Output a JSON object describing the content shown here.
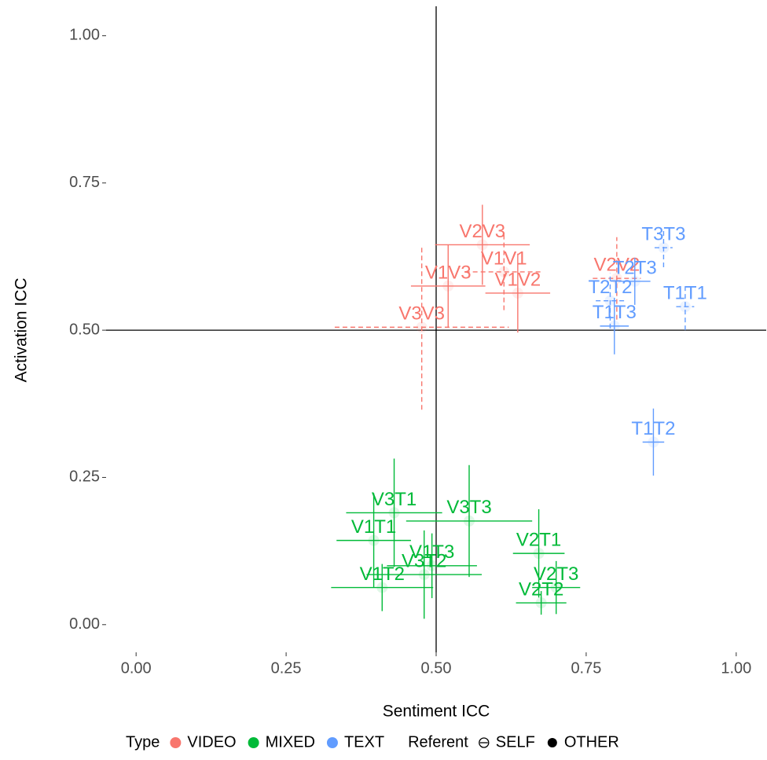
{
  "chart_data": {
    "type": "scatter",
    "x_label": "Sentiment ICC",
    "y_label": "Activation ICC",
    "xlim": [
      -0.05,
      1.05
    ],
    "ylim": [
      -0.047,
      1.05
    ],
    "xticks": [
      {
        "value": 0,
        "label": "0.00"
      },
      {
        "value": 0.25,
        "label": "0.25"
      },
      {
        "value": 0.5,
        "label": "0.50"
      },
      {
        "value": 0.75,
        "label": "0.75"
      },
      {
        "value": 1,
        "label": "1.00"
      }
    ],
    "yticks": [
      {
        "value": 0,
        "label": "0.00"
      },
      {
        "value": 0.25,
        "label": "0.25"
      },
      {
        "value": 0.5,
        "label": "0.50"
      },
      {
        "value": 0.75,
        "label": "0.75"
      },
      {
        "value": 1,
        "label": "1.00"
      }
    ],
    "hline": 0.5,
    "vline": 0.5,
    "legend_title": "Type",
    "referent_title": "Referent",
    "referents": [
      "SELF",
      "OTHER"
    ],
    "series": [
      {
        "name": "VIDEO",
        "color": "#F8766D",
        "labels": [
          "V2V3",
          "V1V1",
          "V1V3",
          "V1V2",
          "V2V2",
          "V3V3"
        ],
        "x": [
          0.577,
          0.613,
          0.52,
          0.636,
          0.801,
          0.476
        ],
        "values": [
          0.645,
          0.599,
          0.575,
          0.563,
          0.588,
          0.505
        ],
        "xerr": [
          0.079,
          0.065,
          0.062,
          0.054,
          0.04,
          0.145
        ],
        "yerr": [
          0.068,
          0.065,
          0.07,
          0.067,
          0.07,
          0.14
        ],
        "referent": [
          "OTHER",
          "SELF",
          "OTHER",
          "OTHER",
          "SELF",
          "SELF"
        ]
      },
      {
        "name": "MIXED",
        "color": "#00BA38",
        "labels": [
          "V3T1",
          "V3T3",
          "V1T1",
          "V1T3",
          "V3T2",
          "V1T2",
          "V2T1",
          "V2T3",
          "V2T2"
        ],
        "x": [
          0.43,
          0.555,
          0.396,
          0.493,
          0.48,
          0.41,
          0.671,
          0.7,
          0.675
        ],
        "values": [
          0.19,
          0.176,
          0.143,
          0.1,
          0.085,
          0.063,
          0.121,
          0.063,
          0.037
        ],
        "xerr": [
          0.08,
          0.105,
          0.062,
          0.075,
          0.096,
          0.085,
          0.043,
          0.04,
          0.042
        ],
        "yerr": [
          0.092,
          0.095,
          0.08,
          0.055,
          0.075,
          0.04,
          0.075,
          0.045,
          0.02
        ],
        "referent": [
          "OTHER",
          "OTHER",
          "OTHER",
          "OTHER",
          "OTHER",
          "OTHER",
          "OTHER",
          "OTHER",
          "OTHER"
        ]
      },
      {
        "name": "TEXT",
        "color": "#619CFF",
        "labels": [
          "T3T3",
          "T2T3",
          "T2T2",
          "T1T1",
          "T1T3",
          "T1T2"
        ],
        "x": [
          0.879,
          0.831,
          0.79,
          0.915,
          0.797,
          0.862
        ],
        "values": [
          0.64,
          0.583,
          0.55,
          0.54,
          0.507,
          0.31
        ],
        "xerr": [
          0.015,
          0.026,
          0.024,
          0.015,
          0.024,
          0.018
        ],
        "yerr": [
          0.033,
          0.04,
          0.047,
          0.04,
          0.048,
          0.057
        ],
        "referent": [
          "SELF",
          "OTHER",
          "SELF",
          "SELF",
          "OTHER",
          "OTHER"
        ]
      }
    ]
  }
}
